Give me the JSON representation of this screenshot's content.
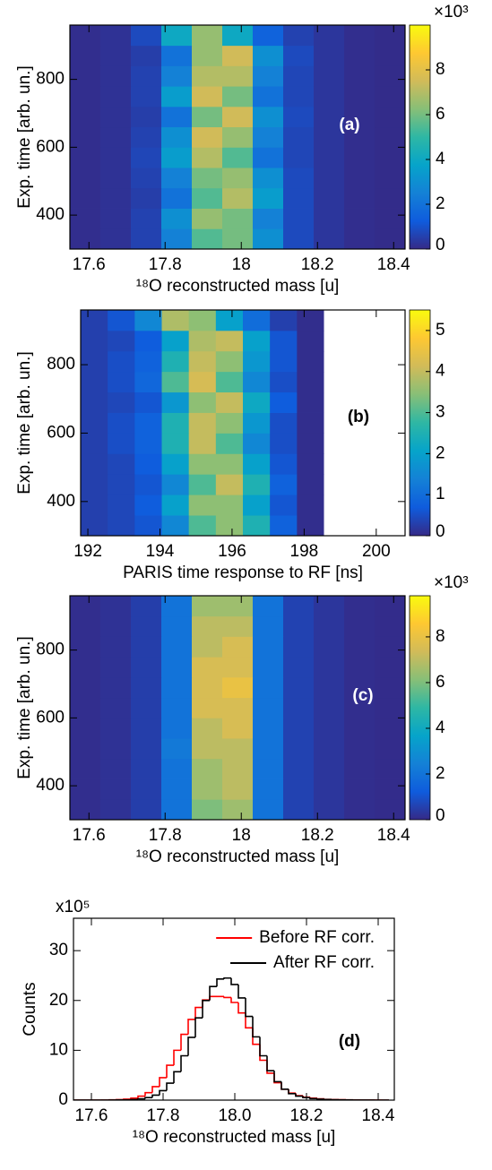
{
  "chart_data": [
    {
      "type": "heatmap",
      "annotation": "(a)",
      "xlabel": "¹⁸O reconstructed mass [u]",
      "ylabel": "Exp. time [arb. un.]",
      "colorbar_label": "×10³",
      "xlim": [
        17.55,
        18.43
      ],
      "xticks": [
        17.6,
        17.8,
        18,
        18.2,
        18.4
      ],
      "ylim": [
        300,
        960
      ],
      "yticks": [
        400,
        600,
        800
      ],
      "zlim": [
        0,
        10
      ],
      "zticks": [
        0,
        2,
        4,
        6,
        8
      ],
      "colorscale": [
        "#352a87",
        "#0f5cdd",
        "#1481d6",
        "#06a4ca",
        "#2eb7a4",
        "#87bf77",
        "#d1bb59",
        "#fec832",
        "#f9fb0e"
      ],
      "x_bins": [
        17.55,
        17.63,
        17.71,
        17.79,
        17.87,
        17.95,
        18.03,
        18.11,
        18.19,
        18.27,
        18.35,
        18.43
      ],
      "y_bins": [
        300,
        360,
        420,
        480,
        540,
        600,
        660,
        720,
        780,
        840,
        900,
        960
      ],
      "z": [
        [
          0.1,
          0.2,
          0.6,
          2.5,
          5.5,
          6.0,
          3.0,
          0.8,
          0.3,
          0.1,
          0.05
        ],
        [
          0.1,
          0.2,
          0.6,
          3.0,
          6.5,
          6.0,
          2.5,
          0.8,
          0.3,
          0.1,
          0.05
        ],
        [
          0.1,
          0.2,
          0.5,
          2.0,
          5.5,
          7.0,
          3.5,
          0.8,
          0.3,
          0.1,
          0.05
        ],
        [
          0.1,
          0.2,
          0.6,
          2.5,
          6.0,
          6.5,
          3.0,
          0.8,
          0.3,
          0.1,
          0.05
        ],
        [
          0.1,
          0.2,
          0.7,
          3.5,
          7.0,
          5.5,
          2.0,
          0.7,
          0.3,
          0.1,
          0.05
        ],
        [
          0.1,
          0.2,
          0.6,
          3.0,
          7.5,
          6.5,
          2.5,
          0.7,
          0.3,
          0.1,
          0.05
        ],
        [
          0.1,
          0.2,
          0.5,
          2.0,
          6.0,
          7.5,
          3.0,
          0.8,
          0.3,
          0.1,
          0.05
        ],
        [
          0.1,
          0.2,
          0.6,
          3.5,
          7.5,
          6.0,
          2.0,
          0.7,
          0.3,
          0.1,
          0.05
        ],
        [
          0.1,
          0.2,
          0.6,
          2.5,
          7.0,
          7.0,
          2.5,
          0.7,
          0.3,
          0.1,
          0.05
        ],
        [
          0.1,
          0.2,
          0.5,
          2.0,
          6.5,
          7.5,
          3.0,
          0.8,
          0.3,
          0.1,
          0.05
        ],
        [
          0.1,
          0.2,
          0.8,
          4.0,
          6.5,
          4.0,
          1.5,
          0.6,
          0.3,
          0.1,
          0.05
        ]
      ]
    },
    {
      "type": "heatmap",
      "annotation": "(b)",
      "xlabel": "PARIS time response to RF [ns]",
      "ylabel": "Exp. time [arb. un.]",
      "xlim": [
        191.8,
        200.8
      ],
      "xticks": [
        192,
        194,
        196,
        198,
        200
      ],
      "ylim": [
        300,
        960
      ],
      "yticks": [
        400,
        600,
        800
      ],
      "zlim": [
        0,
        5.5
      ],
      "zticks": [
        0,
        1,
        2,
        3,
        4,
        5
      ],
      "colorscale": [
        "#352a87",
        "#0f5cdd",
        "#1481d6",
        "#06a4ca",
        "#2eb7a4",
        "#87bf77",
        "#d1bb59",
        "#fec832",
        "#f9fb0e"
      ],
      "empty_color": "#ffffff",
      "x_bins": [
        191.8,
        192.55,
        193.3,
        194.05,
        194.8,
        195.55,
        196.3,
        197.05,
        197.8,
        198.55,
        199.3,
        200.05,
        200.8
      ],
      "y_bins": [
        300,
        360,
        420,
        480,
        540,
        600,
        660,
        720,
        780,
        840,
        900,
        960
      ],
      "z": [
        [
          0.3,
          0.4,
          0.6,
          1.5,
          3.0,
          3.5,
          2.5,
          0.8,
          0.05,
          0,
          0,
          0
        ],
        [
          0.3,
          0.4,
          0.7,
          2.0,
          3.5,
          3.5,
          2.0,
          0.6,
          0.05,
          0,
          0,
          0
        ],
        [
          0.3,
          0.4,
          0.6,
          1.5,
          3.0,
          4.0,
          2.5,
          0.8,
          0.05,
          0,
          0,
          0
        ],
        [
          0.3,
          0.4,
          0.7,
          2.0,
          3.5,
          3.5,
          2.0,
          0.6,
          0.05,
          0,
          0,
          0
        ],
        [
          0.3,
          0.5,
          0.8,
          2.5,
          4.0,
          3.0,
          1.5,
          0.5,
          0.05,
          0,
          0,
          0
        ],
        [
          0.3,
          0.5,
          0.8,
          2.5,
          4.0,
          3.5,
          1.8,
          0.5,
          0.05,
          0,
          0,
          0
        ],
        [
          0.3,
          0.4,
          0.6,
          1.8,
          3.5,
          4.0,
          2.2,
          0.7,
          0.05,
          0,
          0,
          0
        ],
        [
          0.3,
          0.5,
          0.9,
          3.0,
          4.2,
          3.0,
          1.5,
          0.5,
          0.05,
          0,
          0,
          0
        ],
        [
          0.3,
          0.5,
          0.8,
          2.5,
          4.0,
          3.5,
          1.8,
          0.6,
          0.05,
          0,
          0,
          0
        ],
        [
          0.3,
          0.4,
          0.7,
          2.0,
          3.8,
          4.0,
          2.0,
          0.6,
          0.05,
          0,
          0,
          0
        ],
        [
          0.3,
          0.6,
          1.5,
          3.8,
          3.5,
          2.0,
          1.0,
          0.3,
          0.05,
          0,
          0,
          0
        ]
      ]
    },
    {
      "type": "heatmap",
      "annotation": "(c)",
      "xlabel": "¹⁸O reconstructed mass [u]",
      "ylabel": "Exp. time [arb. un.]",
      "colorbar_label": "×10³",
      "xlim": [
        17.55,
        18.43
      ],
      "xticks": [
        17.6,
        17.8,
        18,
        18.2,
        18.4
      ],
      "ylim": [
        300,
        960
      ],
      "yticks": [
        400,
        600,
        800
      ],
      "zlim": [
        0,
        9.8
      ],
      "zticks": [
        0,
        2,
        4,
        6,
        8
      ],
      "colorscale": [
        "#352a87",
        "#0f5cdd",
        "#1481d6",
        "#06a4ca",
        "#2eb7a4",
        "#87bf77",
        "#d1bb59",
        "#fec832",
        "#f9fb0e"
      ],
      "x_bins": [
        17.55,
        17.63,
        17.71,
        17.79,
        17.87,
        17.95,
        18.03,
        18.11,
        18.19,
        18.27,
        18.35,
        18.43
      ],
      "y_bins": [
        300,
        360,
        420,
        480,
        540,
        600,
        660,
        720,
        780,
        840,
        900,
        960
      ],
      "z": [
        [
          0.1,
          0.2,
          0.5,
          2.0,
          6.0,
          6.5,
          2.0,
          0.6,
          0.3,
          0.1,
          0.05
        ],
        [
          0.1,
          0.2,
          0.5,
          2.0,
          6.5,
          7.0,
          2.0,
          0.6,
          0.3,
          0.1,
          0.05
        ],
        [
          0.1,
          0.2,
          0.5,
          2.0,
          6.5,
          7.0,
          2.0,
          0.6,
          0.3,
          0.1,
          0.05
        ],
        [
          0.1,
          0.2,
          0.5,
          2.2,
          7.0,
          7.0,
          2.0,
          0.6,
          0.3,
          0.1,
          0.05
        ],
        [
          0.1,
          0.2,
          0.5,
          2.0,
          7.0,
          7.5,
          2.0,
          0.6,
          0.3,
          0.1,
          0.05
        ],
        [
          0.1,
          0.2,
          0.5,
          2.0,
          7.5,
          7.5,
          2.0,
          0.6,
          0.3,
          0.1,
          0.05
        ],
        [
          0.1,
          0.2,
          0.5,
          2.0,
          7.5,
          8.0,
          2.0,
          0.6,
          0.3,
          0.1,
          0.05
        ],
        [
          0.1,
          0.2,
          0.5,
          2.0,
          7.5,
          7.5,
          2.0,
          0.6,
          0.3,
          0.1,
          0.05
        ],
        [
          0.1,
          0.2,
          0.5,
          2.0,
          7.0,
          7.5,
          2.0,
          0.6,
          0.3,
          0.1,
          0.05
        ],
        [
          0.1,
          0.2,
          0.5,
          2.0,
          7.0,
          7.0,
          2.0,
          0.6,
          0.3,
          0.1,
          0.05
        ],
        [
          0.1,
          0.2,
          0.5,
          2.0,
          6.5,
          6.5,
          2.0,
          0.6,
          0.3,
          0.1,
          0.05
        ]
      ]
    },
    {
      "type": "histogram",
      "annotation": "(d)",
      "xlabel": "¹⁸O reconstructed mass [u]",
      "ylabel": "Counts",
      "y_multiplier": "x10⁵",
      "xlim": [
        17.55,
        18.445
      ],
      "xticks": [
        17.6,
        17.8,
        {
          "value": 18,
          "label": "18.0"
        },
        18.2,
        18.4
      ],
      "ylim": [
        0,
        36.5
      ],
      "yticks": [
        0,
        10,
        20,
        30
      ],
      "legend": "upper right",
      "bins": [
        17.55,
        17.57,
        17.59,
        17.61,
        17.63,
        17.65,
        17.67,
        17.69,
        17.71,
        17.73,
        17.75,
        17.77,
        17.79,
        17.81,
        17.83,
        17.85,
        17.87,
        17.89,
        17.91,
        17.93,
        17.95,
        17.97,
        17.99,
        18.01,
        18.03,
        18.05,
        18.07,
        18.09,
        18.11,
        18.13,
        18.15,
        18.17,
        18.19,
        18.21,
        18.23,
        18.25,
        18.27,
        18.29,
        18.31,
        18.33,
        18.35,
        18.37,
        18.39,
        18.41,
        18.43
      ],
      "series": [
        {
          "name": "Before RF corr.",
          "color": "#ff0000",
          "values": [
            0,
            0,
            0,
            0,
            0.02,
            0.05,
            0.1,
            0.2,
            0.4,
            0.8,
            1.5,
            2.7,
            4.5,
            7.0,
            10.0,
            13.2,
            16.2,
            18.6,
            20.1,
            20.8,
            20.8,
            20.6,
            19.6,
            17.5,
            14.5,
            11.2,
            8.0,
            5.4,
            3.5,
            2.2,
            1.4,
            0.9,
            0.6,
            0.4,
            0.25,
            0.15,
            0.1,
            0.07,
            0.05,
            0.03,
            0.02,
            0.01,
            0.01,
            0
          ]
        },
        {
          "name": "After RF corr.",
          "color": "#000000",
          "values": [
            0,
            0,
            0,
            0,
            0,
            0.01,
            0.03,
            0.06,
            0.12,
            0.25,
            0.5,
            1.0,
            1.9,
            3.4,
            5.7,
            8.9,
            12.6,
            16.5,
            20.0,
            22.8,
            24.3,
            24.5,
            23.2,
            20.5,
            16.8,
            12.7,
            8.9,
            5.9,
            3.7,
            2.2,
            1.3,
            0.8,
            0.5,
            0.3,
            0.2,
            0.12,
            0.08,
            0.05,
            0.03,
            0.02,
            0.01,
            0.01,
            0,
            0
          ]
        }
      ]
    }
  ]
}
